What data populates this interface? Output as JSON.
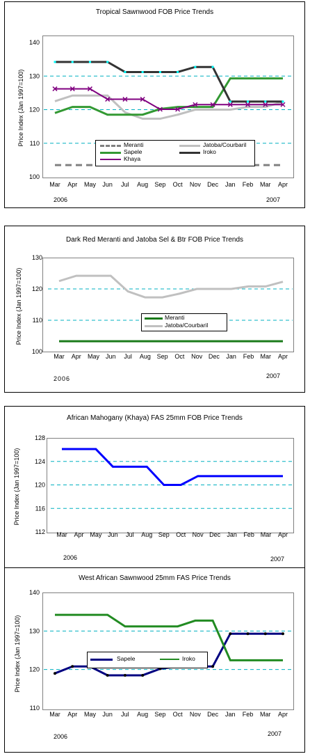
{
  "xlabels": [
    "Mar",
    "Apr",
    "May",
    "Jun",
    "Jul",
    "Aug",
    "Sep",
    "Oct",
    "Nov",
    "Dec",
    "Jan",
    "Feb",
    "Mar",
    "Apr"
  ],
  "year_start": "2006",
  "year_end": "2007",
  "ylabel": "Price Index (Jan 1997=100)",
  "chart_data": [
    {
      "type": "line",
      "title": "Tropical Sawnwood FOB Price Trends",
      "ylabel": "Price Index (Jan 1997=100)",
      "categories": [
        "Mar",
        "Apr",
        "May",
        "Jun",
        "Jul",
        "Aug",
        "Sep",
        "Oct",
        "Nov",
        "Dec",
        "Jan",
        "Feb",
        "Mar",
        "Apr"
      ],
      "ylim": [
        100,
        140
      ],
      "yticks": [
        100,
        110,
        120,
        130,
        140
      ],
      "grid": "dashed horizontal",
      "legend": "bottom-center",
      "series": [
        {
          "name": "Meranti",
          "color": "#808080",
          "style": "dashed",
          "values": [
            103.5,
            103.5,
            103.5,
            103.5,
            103.5,
            103.5,
            103.5,
            103.5,
            103.5,
            103.5,
            103.5,
            103.5,
            103.5,
            103.5
          ]
        },
        {
          "name": "Jatoba/Courbaril",
          "color": "#c0c0c0",
          "style": "solid",
          "values": [
            122.5,
            124.2,
            124.2,
            124.2,
            119.2,
            117.3,
            117.3,
            118.5,
            120,
            120,
            120,
            120.8,
            120.8,
            122.3
          ]
        },
        {
          "name": "Sapele",
          "color": "#339933",
          "style": "solid",
          "values": [
            119,
            120.8,
            120.8,
            118.5,
            118.5,
            118.5,
            120.2,
            120.8,
            120.8,
            120.8,
            129.3,
            129.3,
            129.3,
            129.3
          ]
        },
        {
          "name": "Iroko",
          "color": "#333333",
          "style": "solid",
          "marker": "cyan-dot",
          "values": [
            134.2,
            134.2,
            134.2,
            134.2,
            131.2,
            131.2,
            131.2,
            131.2,
            132.7,
            132.7,
            122.4,
            122.4,
            122.4,
            122.4
          ]
        },
        {
          "name": "Khaya",
          "color": "#800080",
          "style": "solid",
          "marker": "x",
          "values": [
            126.2,
            126.2,
            126.2,
            123.1,
            123.1,
            123.1,
            120.1,
            120.1,
            121.5,
            121.5,
            121.5,
            121.5,
            121.5,
            121.5
          ]
        }
      ]
    },
    {
      "type": "line",
      "title": "Dark Red Meranti and Jatoba Sel & Btr FOB Price Trends",
      "ylabel": "Price Index (Jan 1997=100)",
      "categories": [
        "Mar",
        "Apr",
        "May",
        "Jun",
        "Jul",
        "Aug",
        "Sep",
        "Oct",
        "Nov",
        "Dec",
        "Jan",
        "Feb",
        "Mar",
        "Apr"
      ],
      "ylim": [
        100,
        130
      ],
      "yticks": [
        100,
        110,
        120,
        130
      ],
      "grid": "dashed horizontal",
      "legend": "center",
      "series": [
        {
          "name": "Meranti",
          "color": "#1a7a1a",
          "style": "solid",
          "values": [
            103.3,
            103.3,
            103.3,
            103.3,
            103.3,
            103.3,
            103.3,
            103.3,
            103.3,
            103.3,
            103.3,
            103.3,
            103.3,
            103.3
          ]
        },
        {
          "name": "Jatoba/Courbaril",
          "color": "#c0c0c0",
          "style": "solid",
          "values": [
            122.5,
            124.2,
            124.2,
            124.2,
            119.2,
            117.3,
            117.3,
            118.5,
            120,
            120,
            120,
            120.8,
            120.8,
            122.3
          ]
        }
      ]
    },
    {
      "type": "line",
      "title": "African Mahogany (Khaya) FAS 25mm FOB Price Trends",
      "ylabel": "Price Index (Jan 1997=100)",
      "categories": [
        "Mar",
        "Apr",
        "May",
        "Jun",
        "Jul",
        "Aug",
        "Sep",
        "Oct",
        "Nov",
        "Dec",
        "Jan",
        "Feb",
        "Mar",
        "Apr"
      ],
      "ylim": [
        112,
        128
      ],
      "yticks": [
        112,
        116,
        120,
        124,
        128
      ],
      "grid": "dashed horizontal",
      "series": [
        {
          "name": "",
          "color": "#0000ff",
          "style": "solid",
          "values": [
            126.1,
            126.1,
            126.1,
            123.1,
            123.1,
            123.1,
            120,
            120,
            121.5,
            121.5,
            121.5,
            121.5,
            121.5,
            121.5
          ]
        }
      ]
    },
    {
      "type": "line",
      "title": "West  African Sawnwood 25mm FAS Price Trends",
      "ylabel": "Price Index (Jan 1997=100)",
      "categories": [
        "Mar",
        "Apr",
        "May",
        "Jun",
        "Jul",
        "Aug",
        "Sep",
        "Oct",
        "Nov",
        "Dec",
        "Jan",
        "Feb",
        "Mar",
        "Apr"
      ],
      "ylim": [
        110,
        140
      ],
      "yticks": [
        110,
        120,
        130,
        140
      ],
      "grid": "dashed horizontal",
      "legend": "center",
      "series": [
        {
          "name": "Sapele",
          "color": "#000080",
          "style": "solid",
          "marker": "black-dot",
          "values": [
            119,
            120.8,
            120.8,
            118.5,
            118.5,
            118.5,
            120.2,
            120.8,
            120.8,
            120.8,
            129.3,
            129.3,
            129.3,
            129.3
          ]
        },
        {
          "name": "Iroko",
          "color": "#228b22",
          "style": "solid",
          "values": [
            134.2,
            134.2,
            134.2,
            134.2,
            131.2,
            131.2,
            131.2,
            131.2,
            132.7,
            132.7,
            122.4,
            122.4,
            122.4,
            122.4
          ]
        }
      ]
    }
  ]
}
